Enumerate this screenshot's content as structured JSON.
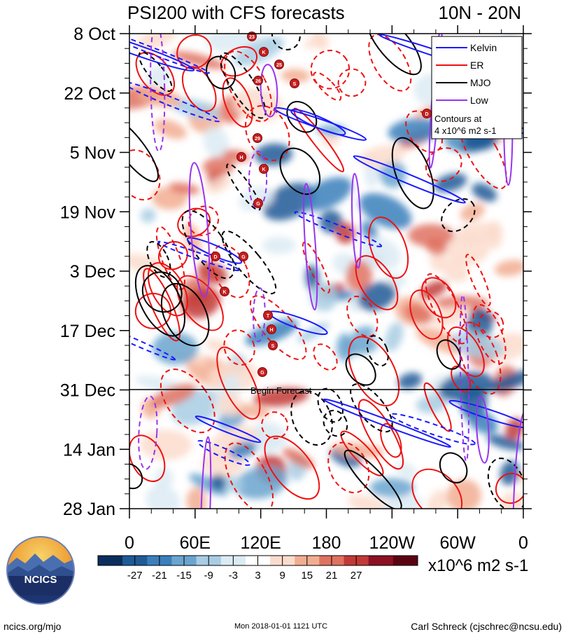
{
  "chart_data": {
    "type": "heatmap",
    "title": "PSI200 with CFS forecasts",
    "lat_band": "10N - 20N",
    "y_ticks": [
      "8 Oct",
      "22 Oct",
      "5 Nov",
      "19 Nov",
      "3 Dec",
      "17 Dec",
      "31 Dec",
      "14 Jan",
      "28 Jan"
    ],
    "x_ticks": [
      "0",
      "60E",
      "120E",
      "180",
      "120W",
      "60W",
      "0"
    ],
    "x_range_deg": [
      0,
      360
    ],
    "y_range_days": [
      0,
      112
    ],
    "forecast_start_label": "Begin Forecast",
    "forecast_start_day": 84,
    "colorbar": {
      "ticks": [
        "-27",
        "-21",
        "-15",
        "-9",
        "-3",
        "3",
        "9",
        "15",
        "21",
        "27"
      ],
      "units": "x10^6 m2 s-1",
      "colors": [
        "#0b2e5e",
        "#1f5b96",
        "#3a7fbb",
        "#6aa5cf",
        "#a8cce3",
        "#dcebf3",
        "#ffffff",
        "#fbdccc",
        "#f2ad91",
        "#df7260",
        "#c23a37",
        "#8c1123",
        "#5a0412"
      ]
    },
    "legend": {
      "placement": "top-right",
      "entries": [
        {
          "name": "Kelvin",
          "color": "#1a1aff"
        },
        {
          "name": "ER",
          "color": "#ee1111"
        },
        {
          "name": "MJO",
          "color": "#000000"
        },
        {
          "name": "Low",
          "color": "#9933ee"
        }
      ],
      "note_line1": "Contours at",
      "note_line2": "4 x10^6 m2 s-1"
    },
    "storm_markers": [
      "23",
      "K",
      "25",
      "26",
      "S",
      "D",
      "29",
      "H",
      "K",
      "G",
      "D",
      "G",
      "K",
      "T",
      "H",
      "S",
      "G"
    ]
  },
  "logo": {
    "text": "NCICS"
  },
  "footer": {
    "url": "ncics.org/mjo",
    "timestamp": "Mon 2018-01-01 1121 UTC",
    "author": "Carl Schreck (cjschrec@ncsu.edu)"
  }
}
